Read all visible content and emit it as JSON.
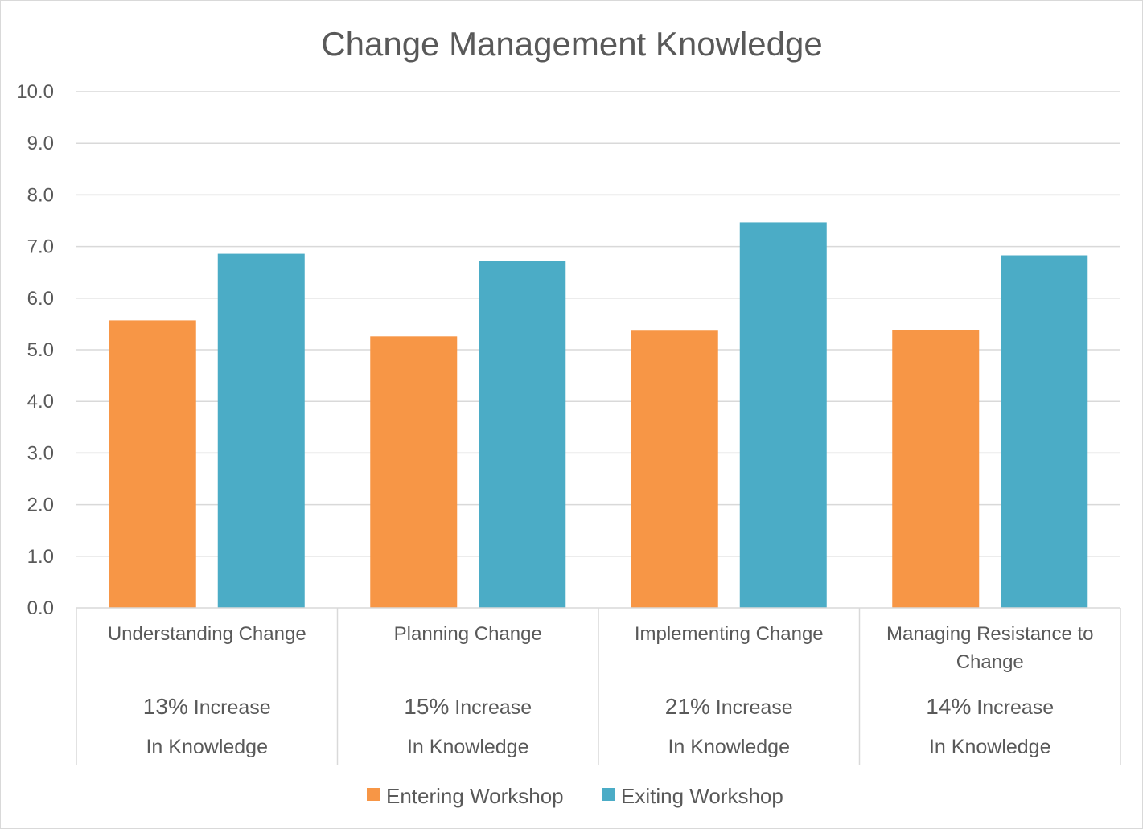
{
  "chart_data": {
    "type": "bar",
    "title": "Change Management Knowledge",
    "xlabel": "",
    "ylabel": "",
    "ylim": [
      0,
      10
    ],
    "yticks": [
      "0.0",
      "1.0",
      "2.0",
      "3.0",
      "4.0",
      "5.0",
      "6.0",
      "7.0",
      "8.0",
      "9.0",
      "10.0"
    ],
    "categories": [
      {
        "label_lines": [
          "Understanding Change"
        ],
        "increase_pct": "13%",
        "increase_word": " Increase",
        "knowledge_text": "In Knowledge"
      },
      {
        "label_lines": [
          "Planning Change"
        ],
        "increase_pct": "15%",
        "increase_word": " Increase",
        "knowledge_text": "In Knowledge"
      },
      {
        "label_lines": [
          "Implementing Change"
        ],
        "increase_pct": "21%",
        "increase_word": " Increase",
        "knowledge_text": "In Knowledge"
      },
      {
        "label_lines": [
          "Managing Resistance to",
          "Change"
        ],
        "increase_pct": "14%",
        "increase_word": " Increase",
        "knowledge_text": "In Knowledge"
      }
    ],
    "series": [
      {
        "name": "Entering Workshop",
        "color": "#f79646",
        "values": [
          5.57,
          5.26,
          5.37,
          5.38
        ]
      },
      {
        "name": "Exiting Workshop",
        "color": "#4bacc6",
        "values": [
          6.86,
          6.72,
          7.47,
          6.83
        ]
      }
    ],
    "grid": true,
    "gridline_color": "#d9d9d9",
    "text_color": "#595959",
    "legend_position": "bottom"
  }
}
